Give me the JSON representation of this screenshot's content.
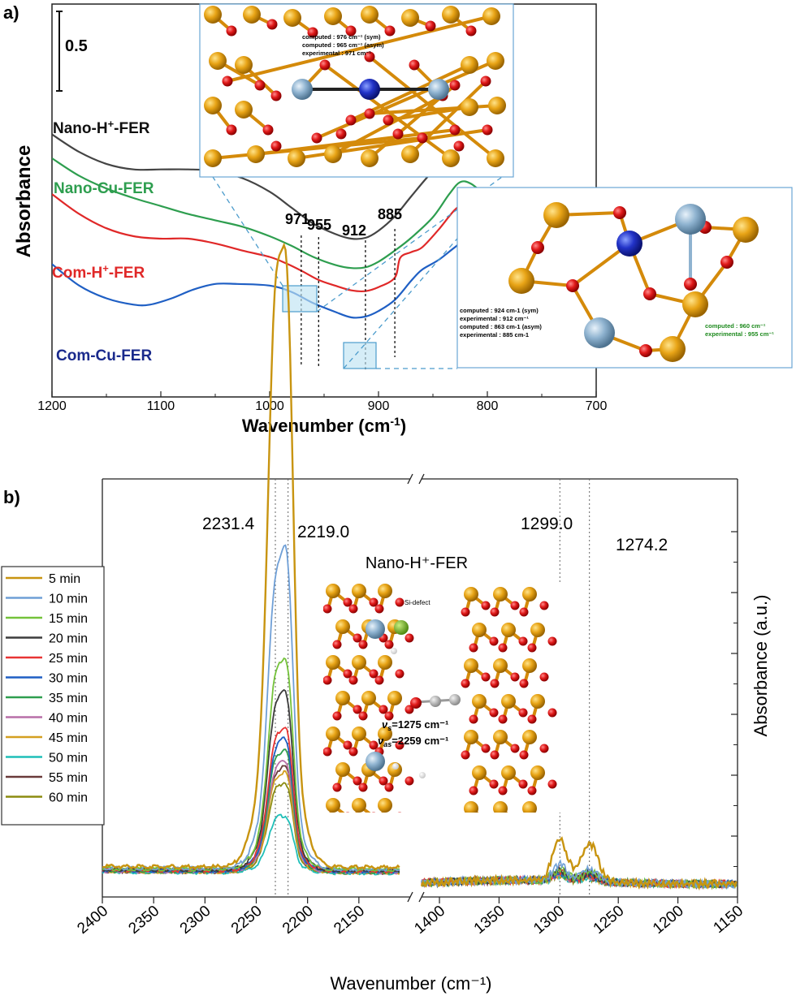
{
  "panel_labels": {
    "a": "a)",
    "b": "b)"
  },
  "chart_data": [
    {
      "type": "line",
      "panel": "a)",
      "xlabel": "Wavenumber (cm-1)",
      "ylabel": "Absorbance",
      "xlim": [
        1200,
        700
      ],
      "x_reversed": true,
      "x_ticks": [
        1200,
        1100,
        1000,
        900,
        800,
        700
      ],
      "scale_bar_label": "0.5",
      "series": [
        {
          "name": "Nano-H+-FER",
          "color": "#444444",
          "x": [
            1200,
            1175,
            1150,
            1125,
            1100,
            1075,
            1050,
            1025,
            1000,
            980,
            960,
            940,
            925,
            912,
            900,
            885,
            870,
            850,
            830,
            810,
            790
          ],
          "y": [
            3.3,
            3.08,
            2.93,
            2.86,
            2.86,
            2.86,
            2.84,
            2.75,
            2.58,
            2.38,
            2.18,
            2.05,
            1.99,
            2.0,
            2.09,
            2.27,
            2.52,
            2.84,
            3.08,
            3.3,
            3.5
          ]
        },
        {
          "name": "Nano-Cu-FER",
          "color": "#2e9e4f",
          "x": [
            1200,
            1175,
            1150,
            1125,
            1100,
            1075,
            1050,
            1025,
            1000,
            980,
            960,
            940,
            925,
            912,
            900,
            885,
            870,
            850,
            835,
            825,
            815,
            800,
            790
          ],
          "y": [
            3.0,
            2.78,
            2.62,
            2.5,
            2.4,
            2.3,
            2.22,
            2.14,
            2.02,
            1.9,
            1.76,
            1.66,
            1.62,
            1.63,
            1.7,
            1.84,
            2.0,
            2.26,
            2.55,
            2.7,
            2.68,
            2.52,
            2.48
          ]
        },
        {
          "name": "Com-H+-FER",
          "color": "#e02828",
          "x": [
            1200,
            1175,
            1150,
            1125,
            1100,
            1075,
            1050,
            1025,
            1000,
            985,
            970,
            955,
            940,
            925,
            912,
            900,
            885,
            880,
            870,
            860,
            845,
            830,
            820,
            810,
            800,
            790
          ],
          "y": [
            2.55,
            2.3,
            2.12,
            2.02,
            1.99,
            1.99,
            1.93,
            1.84,
            1.76,
            1.68,
            1.58,
            1.47,
            1.4,
            1.34,
            1.33,
            1.38,
            1.5,
            1.75,
            1.82,
            1.88,
            2.1,
            2.35,
            2.43,
            2.35,
            2.32,
            2.35
          ]
        },
        {
          "name": "Com-Cu-FER",
          "color": "#1f5fc4",
          "x": [
            1200,
            1175,
            1150,
            1125,
            1110,
            1090,
            1070,
            1050,
            1030,
            1000,
            980,
            960,
            940,
            925,
            912,
            900,
            885,
            870,
            860,
            845,
            830,
            820,
            810,
            800,
            790
          ],
          "y": [
            1.67,
            1.4,
            1.24,
            1.16,
            1.16,
            1.24,
            1.35,
            1.42,
            1.42,
            1.4,
            1.32,
            1.18,
            1.07,
            1.0,
            1.01,
            1.08,
            1.22,
            1.46,
            1.6,
            1.72,
            1.88,
            1.97,
            1.88,
            1.83,
            1.86
          ]
        }
      ],
      "peak_labels": [
        {
          "label": "971",
          "x": 971
        },
        {
          "label": "955",
          "x": 955
        },
        {
          "label": "912",
          "x": 912
        },
        {
          "label": "885",
          "x": 885
        }
      ],
      "inset_top": {
        "lines": [
          "computed : 976 cm⁻¹ (sym)",
          "computed : 965 cm⁻¹ (asym)",
          "experimental : 971 cm⁻¹"
        ]
      },
      "inset_right": {
        "lines": [
          "computed      : 924 cm-1 (sym)",
          "experimental : 912 cm⁻¹",
          "computed      : 863 cm-1 (asym)",
          "experimental : 885 cm-1"
        ],
        "green_lines": [
          "computed      : 960 cm⁻¹",
          "experimental : 955 cm⁻¹"
        ]
      }
    },
    {
      "type": "line",
      "panel": "b)",
      "xlabel": "Wavenumber (cm⁻¹)",
      "ylabel": "Absorbance (a.u.)",
      "broken_axis": true,
      "x_segments": [
        {
          "xlim": [
            2400,
            2100
          ],
          "ticks": [
            2400,
            2350,
            2300,
            2250,
            2200,
            2150
          ]
        },
        {
          "xlim": [
            1415,
            1150
          ],
          "ticks": [
            1400,
            1350,
            1300,
            1250,
            1200,
            1150
          ]
        }
      ],
      "ylim": [
        0,
        1.3
      ],
      "peak_labels": [
        {
          "label": "2231.4",
          "x": 2231.4
        },
        {
          "label": "2219.0",
          "x": 2219.0
        },
        {
          "label": "1299.0",
          "x": 1299.0
        },
        {
          "label": "1274.2",
          "x": 1274.2
        }
      ],
      "inset_label": "Nano-H⁺-FER",
      "inset_texts": {
        "defect": "Si-defect",
        "vs": "=1275 cm⁻¹",
        "vas": "=2259 cm⁻¹"
      },
      "series": [
        {
          "name": "5 min",
          "color": "#c89410",
          "peak_high": 1.2,
          "peak_low": 1.09,
          "base": 0.095,
          "peak2_a": 0.13,
          "peak2_b": 0.12
        },
        {
          "name": "10 min",
          "color": "#6f9fd6",
          "peak_high": 0.6,
          "peak_low": 0.59,
          "base": 0.09,
          "peak2_a": 0.05,
          "peak2_b": 0.04
        },
        {
          "name": "15 min",
          "color": "#74c23a",
          "peak_high": 0.4,
          "peak_low": 0.38,
          "base": 0.088,
          "peak2_a": 0.035,
          "peak2_b": 0.03
        },
        {
          "name": "20 min",
          "color": "#3c3c3c",
          "peak_high": 0.34,
          "peak_low": 0.32,
          "base": 0.086,
          "peak2_a": 0.03,
          "peak2_b": 0.025
        },
        {
          "name": "25 min",
          "color": "#e83434",
          "peak_high": 0.27,
          "peak_low": 0.26,
          "base": 0.084,
          "peak2_a": 0.03,
          "peak2_b": 0.02
        },
        {
          "name": "30 min",
          "color": "#1f5fc4",
          "peak_high": 0.25,
          "peak_low": 0.24,
          "base": 0.083,
          "peak2_a": 0.025,
          "peak2_b": 0.02
        },
        {
          "name": "35 min",
          "color": "#2e9e4f",
          "peak_high": 0.23,
          "peak_low": 0.22,
          "base": 0.082,
          "peak2_a": 0.02,
          "peak2_b": 0.02
        },
        {
          "name": "40 min",
          "color": "#b86fa8",
          "peak_high": 0.21,
          "peak_low": 0.2,
          "base": 0.081,
          "peak2_a": 0.02,
          "peak2_b": 0.015
        },
        {
          "name": "45 min",
          "color": "#d4a020",
          "peak_high": 0.19,
          "peak_low": 0.18,
          "base": 0.08,
          "peak2_a": 0.02,
          "peak2_b": 0.015
        },
        {
          "name": "50 min",
          "color": "#1fbfb8",
          "peak_high": 0.11,
          "peak_low": 0.1,
          "base": 0.078,
          "peak2_a": 0.015,
          "peak2_b": 0.01
        },
        {
          "name": "55 min",
          "color": "#6a3a3a",
          "peak_high": 0.2,
          "peak_low": 0.19,
          "base": 0.08,
          "peak2_a": 0.02,
          "peak2_b": 0.015
        },
        {
          "name": "60 min",
          "color": "#8c8c10",
          "peak_high": 0.17,
          "peak_low": 0.16,
          "base": 0.079,
          "peak2_a": 0.015,
          "peak2_b": 0.01
        }
      ]
    }
  ]
}
